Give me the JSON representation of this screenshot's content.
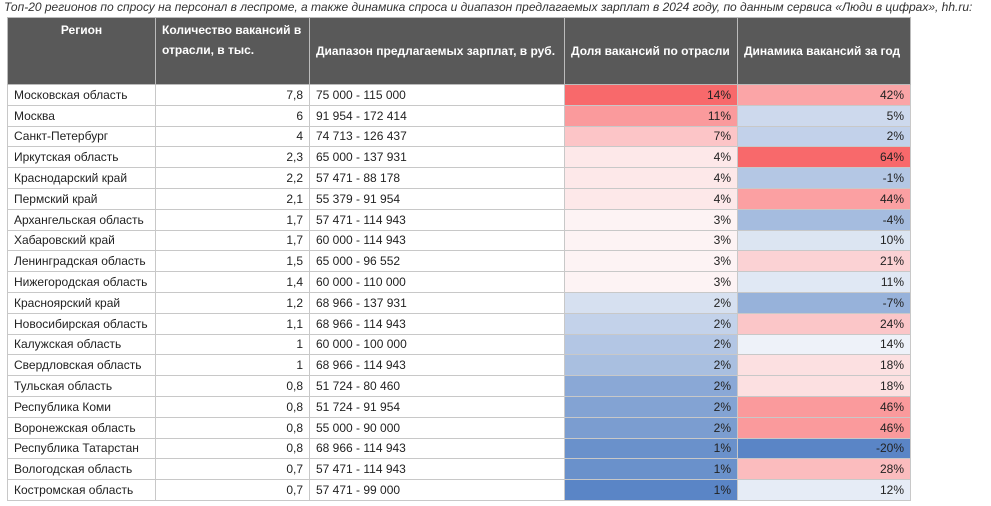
{
  "caption": "Топ-20 регионов по спросу на персонал в леспроме, а также динамика спроса и диапазон предлагаемых зарплат в 2024 году, по данным сервиса «Люди в цифрах», hh.ru:",
  "table": {
    "header": [
      "Регион",
      "Количество вакансий в отрасли, в тыс.",
      "Диапазон предлагаемых зарплат, в руб.",
      "Доля вакансий по отрасли",
      "Динамика вакансий за год"
    ],
    "rows": [
      [
        "Московская область",
        "7,8",
        "75 000 - 115 000",
        "14%",
        "42%"
      ],
      [
        "Москва",
        "6",
        "91 954 - 172 414",
        "11%",
        "5%"
      ],
      [
        "Санкт-Петербург",
        "4",
        "74 713 - 126 437",
        "7%",
        "2%"
      ],
      [
        "Иркутская область",
        "2,3",
        "65 000 - 137 931",
        "4%",
        "64%"
      ],
      [
        "Краснодарский край",
        "2,2",
        "57 471 - 88 178",
        "4%",
        "-1%"
      ],
      [
        "Пермский край",
        "2,1",
        "55 379 - 91 954",
        "4%",
        "44%"
      ],
      [
        "Архангельская область",
        "1,7",
        "57 471 - 114 943",
        "3%",
        "-4%"
      ],
      [
        "Хабаровский край",
        "1,7",
        "60 000 - 114 943",
        "3%",
        "10%"
      ],
      [
        "Ленинградская область",
        "1,5",
        "65 000 - 96 552",
        "3%",
        "21%"
      ],
      [
        "Нижегородская область",
        "1,4",
        "60 000 - 110 000",
        "3%",
        "11%"
      ],
      [
        "Красноярский край",
        "1,2",
        "68 966 - 137 931",
        "2%",
        "-7%"
      ],
      [
        "Новосибирская область",
        "1,1",
        "68 966 - 114 943",
        "2%",
        "24%"
      ],
      [
        "Калужская область",
        "1",
        "60 000 - 100 000",
        "2%",
        "14%"
      ],
      [
        "Свердловская область",
        "1",
        "68 966 - 114 943",
        "2%",
        "18%"
      ],
      [
        "Тульская область",
        "0,8",
        "51 724 - 80 460",
        "2%",
        "18%"
      ],
      [
        "Республика Коми",
        "0,8",
        "51 724 - 91 954",
        "2%",
        "46%"
      ],
      [
        "Воронежская область",
        "0,8",
        "55 000 - 90 000",
        "2%",
        "46%"
      ],
      [
        "Республика Татарстан",
        "0,8",
        "68 966 - 114 943",
        "1%",
        "-20%"
      ],
      [
        "Вологодская область",
        "0,7",
        "57 471 - 114 943",
        "1%",
        "28%"
      ],
      [
        "Костромская область",
        "0,7",
        "57 471 - 99 000",
        "1%",
        "12%"
      ]
    ]
  }
}
